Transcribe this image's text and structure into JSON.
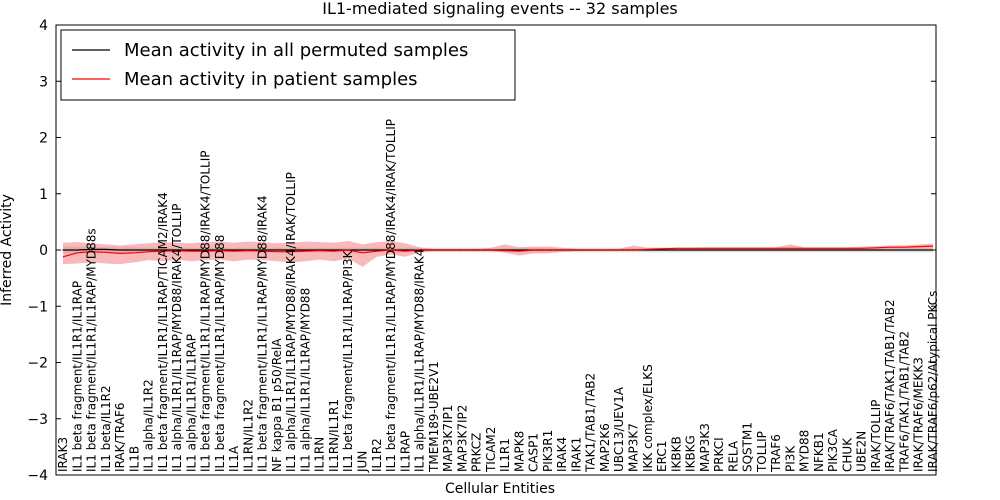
{
  "chart_data": {
    "type": "line",
    "title": "IL1-mediated signaling events -- 32 samples",
    "xlabel": "Cellular Entities",
    "ylabel": "Inferred Activity",
    "ylim": [
      -4,
      4
    ],
    "yticks": [
      -4,
      -3,
      -2,
      -1,
      0,
      1,
      2,
      3,
      4
    ],
    "ytick_labels": [
      "−4",
      "−3",
      "−2",
      "−1",
      "0",
      "1",
      "2",
      "3",
      "4"
    ],
    "legend": {
      "placement": "top-left",
      "entries": [
        {
          "label": "Mean activity in all permuted samples",
          "color": "#000000"
        },
        {
          "label": "Mean activity in patient samples",
          "color": "#ff0000"
        }
      ]
    },
    "colors": {
      "permuted": "#000000",
      "patient": "#ff0000",
      "patient_band": "#f08080",
      "permuted_band": "#c8c8c8"
    },
    "categories": [
      "IRAK3",
      "IL1 beta fragment/IL1R1/IL1RAP",
      "IL1 beta fragment/IL1R1/IL1RAP/MYD88s",
      "IL1 beta/IL1R2",
      "IRAK/TRAF6",
      "IL1B",
      "IL1 alpha/IL1R2",
      "IL1 beta fragment/IL1R1/IL1RAP/TICAM2/IRAK4",
      "IL1 alpha/IL1R1/IL1RAP/MYD88/IRAK4/TOLLIP",
      "IL1 alpha/IL1R1/IL1RAP",
      "IL1 beta fragment/IL1R1/IL1RAP/MYD88/IRAK4/TOLLIP",
      "IL1 beta fragment/IL1R1/IL1RAP/MYD88",
      "IL1A",
      "IL1RN/IL1R2",
      "IL1 beta fragment/IL1R1/IL1RAP/MYD88/IRAK4",
      "NF kappa B1 p50/RelA",
      "IL1 alpha/IL1R1/IL1RAP/MYD88/IRAK4/IRAK/TOLLIP",
      "IL1 alpha/IL1R1/IL1RAP/MYD88",
      "IL1RN",
      "IL1RN/IL1R1",
      "IL1 beta fragment/IL1R1/IL1RAP/PI3K",
      "JUN",
      "IL1R2",
      "IL1 beta fragment/IL1R1/IL1RAP/MYD88/IRAK4/IRAK/TOLLIP",
      "IL1RAP",
      "IL1 alpha/IL1R1/IL1RAP/MYD88/IRAK4",
      "TMEM189-UBE2V1",
      "MAP3K7IP1",
      "MAP3K7IP2",
      "PRKCZ",
      "TICAM2",
      "IL1R1",
      "MAPK8",
      "CASP1",
      "PIK3R1",
      "IRAK4",
      "IRAK1",
      "TAK1/TAB1/TAB2",
      "MAP2K6",
      "UBC13/UEV1A",
      "MAP3K7",
      "IKK complex/ELKS",
      "ERC1",
      "IKBKB",
      "IKBKG",
      "MAP3K3",
      "PRKCI",
      "RELA",
      "SQSTM1",
      "TOLLIP",
      "TRAF6",
      "PI3K",
      "MYD88",
      "NFKB1",
      "PIK3CA",
      "CHUK",
      "UBE2N",
      "IRAK/TOLLIP",
      "IRAK/TRAF6/TAK1/TAB1/TAB2",
      "TRAF6/TAK1/TAB1/TAB2",
      "IRAK/TRAF6/MEKK3",
      "IRAK/TRAF6/p62/Atypical PKCs"
    ],
    "series": [
      {
        "name": "Mean activity in all permuted samples",
        "color": "#000000",
        "values": [
          0.0,
          0.0,
          0.01,
          0.01,
          0.0,
          0.0,
          0.0,
          0.0,
          0.0,
          0.0,
          0.0,
          0.0,
          0.0,
          0.0,
          0.0,
          0.0,
          0.0,
          0.0,
          0.0,
          0.0,
          0.0,
          0.0,
          0.0,
          0.0,
          0.0,
          0.0,
          0.0,
          0.0,
          0.0,
          0.0,
          0.0,
          0.0,
          0.0,
          0.0,
          0.0,
          0.0,
          0.0,
          0.0,
          0.0,
          0.0,
          0.0,
          0.0,
          0.0,
          0.0,
          0.0,
          0.0,
          0.0,
          0.0,
          0.0,
          0.0,
          0.0,
          0.0,
          0.0,
          0.0,
          0.0,
          0.0,
          0.0,
          0.0,
          0.0,
          0.0,
          0.0,
          0.0
        ],
        "band_lower": [
          -0.06,
          -0.06,
          -0.06,
          -0.05,
          -0.05,
          -0.05,
          -0.04,
          -0.04,
          -0.04,
          -0.04,
          -0.04,
          -0.04,
          -0.04,
          -0.04,
          -0.04,
          -0.04,
          -0.04,
          -0.04,
          -0.04,
          -0.04,
          -0.04,
          -0.04,
          -0.04,
          -0.04,
          -0.04,
          -0.04,
          -0.04,
          -0.04,
          -0.04,
          -0.04,
          -0.04,
          -0.04,
          -0.04,
          -0.04,
          -0.04,
          -0.04,
          -0.04,
          -0.04,
          -0.04,
          -0.04,
          -0.04,
          -0.04,
          -0.04,
          -0.04,
          -0.04,
          -0.04,
          -0.04,
          -0.04,
          -0.04,
          -0.04,
          -0.04,
          -0.04,
          -0.04,
          -0.04,
          -0.04,
          -0.04,
          -0.04,
          -0.04,
          -0.04,
          -0.04,
          -0.04,
          -0.04
        ],
        "band_upper": [
          0.06,
          0.06,
          0.06,
          0.05,
          0.05,
          0.05,
          0.04,
          0.04,
          0.04,
          0.04,
          0.04,
          0.04,
          0.04,
          0.04,
          0.04,
          0.04,
          0.04,
          0.04,
          0.04,
          0.04,
          0.04,
          0.04,
          0.04,
          0.04,
          0.04,
          0.04,
          0.04,
          0.04,
          0.04,
          0.04,
          0.04,
          0.04,
          0.04,
          0.04,
          0.04,
          0.04,
          0.04,
          0.04,
          0.04,
          0.04,
          0.04,
          0.04,
          0.04,
          0.04,
          0.04,
          0.04,
          0.04,
          0.04,
          0.04,
          0.04,
          0.04,
          0.04,
          0.04,
          0.04,
          0.04,
          0.04,
          0.04,
          0.04,
          0.04,
          0.04,
          0.04,
          0.04
        ]
      },
      {
        "name": "Mean activity in patient samples",
        "color": "#ff0000",
        "values": [
          -0.12,
          -0.05,
          -0.03,
          -0.04,
          -0.06,
          -0.05,
          -0.03,
          -0.02,
          -0.01,
          -0.02,
          -0.02,
          -0.01,
          -0.02,
          -0.01,
          -0.02,
          -0.03,
          -0.03,
          -0.02,
          -0.01,
          -0.02,
          0.0,
          -0.05,
          -0.02,
          0.0,
          -0.02,
          0.0,
          0.0,
          0.0,
          0.0,
          0.0,
          0.0,
          -0.01,
          -0.02,
          0.0,
          0.0,
          0.0,
          0.0,
          0.0,
          0.0,
          0.0,
          0.0,
          0.01,
          0.02,
          0.03,
          0.03,
          0.03,
          0.03,
          0.03,
          0.03,
          0.03,
          0.03,
          0.03,
          0.03,
          0.03,
          0.03,
          0.03,
          0.03,
          0.04,
          0.05,
          0.05,
          0.06,
          0.07
        ],
        "band_lower": [
          -0.25,
          -0.24,
          -0.22,
          -0.24,
          -0.25,
          -0.22,
          -0.18,
          -0.2,
          -0.17,
          -0.2,
          -0.18,
          -0.17,
          -0.2,
          -0.17,
          -0.18,
          -0.2,
          -0.22,
          -0.2,
          -0.17,
          -0.2,
          -0.15,
          -0.3,
          -0.12,
          -0.08,
          -0.12,
          -0.04,
          -0.02,
          -0.02,
          -0.02,
          -0.02,
          -0.02,
          -0.05,
          -0.1,
          -0.06,
          -0.06,
          -0.03,
          -0.02,
          -0.01,
          -0.01,
          -0.01,
          -0.01,
          0.0,
          0.0,
          0.01,
          0.01,
          0.01,
          0.01,
          0.01,
          0.01,
          0.01,
          0.01,
          0.0,
          0.01,
          0.01,
          0.01,
          0.01,
          0.01,
          0.01,
          0.02,
          0.02,
          0.02,
          0.02
        ],
        "band_upper": [
          0.13,
          0.14,
          0.12,
          0.1,
          0.08,
          0.1,
          0.12,
          0.14,
          0.13,
          0.12,
          0.14,
          0.15,
          0.13,
          0.15,
          0.14,
          0.12,
          0.13,
          0.15,
          0.14,
          0.13,
          0.16,
          0.1,
          0.14,
          0.16,
          0.12,
          0.05,
          0.02,
          0.02,
          0.02,
          0.02,
          0.04,
          0.1,
          0.05,
          0.06,
          0.06,
          0.04,
          0.02,
          0.01,
          0.01,
          0.02,
          0.08,
          0.04,
          0.04,
          0.04,
          0.04,
          0.05,
          0.05,
          0.05,
          0.05,
          0.05,
          0.05,
          0.1,
          0.05,
          0.05,
          0.05,
          0.05,
          0.06,
          0.07,
          0.08,
          0.08,
          0.1,
          0.11
        ]
      }
    ]
  }
}
